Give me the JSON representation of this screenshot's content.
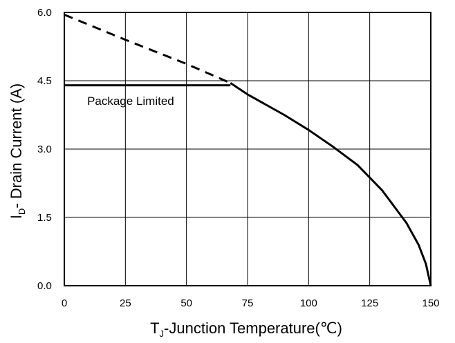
{
  "chart_data": {
    "type": "line",
    "xlabel": {
      "prefix": "T",
      "sub": "J",
      "suffix": "-Junction Temperature(℃)"
    },
    "ylabel": {
      "prefix": "I",
      "sub": "D",
      "suffix": "- Drain Current (A)"
    },
    "xlim": [
      0,
      150
    ],
    "ylim": [
      0,
      6
    ],
    "x_ticks": [
      "0",
      "25",
      "50",
      "75",
      "100",
      "125",
      "150"
    ],
    "y_ticks": [
      "6.0",
      "4.5",
      "3.0",
      "1.5",
      "0.0"
    ],
    "grid": true,
    "series": [
      {
        "style": "dashed",
        "x": [
          0,
          25,
          50,
          68
        ],
        "y": [
          5.95,
          5.4,
          4.87,
          4.45
        ]
      },
      {
        "style": "solid",
        "x": [
          68,
          75,
          90,
          100,
          110,
          120,
          130,
          140,
          145,
          148,
          150
        ],
        "y": [
          4.45,
          4.2,
          3.75,
          3.42,
          3.05,
          2.65,
          2.1,
          1.38,
          0.9,
          0.48,
          0.0
        ]
      },
      {
        "style": "solid",
        "x": [
          0,
          68
        ],
        "y": [
          4.4,
          4.4
        ]
      }
    ],
    "annotations": [
      {
        "text": "Package Limited",
        "x": 2,
        "y": 4.0
      }
    ]
  }
}
